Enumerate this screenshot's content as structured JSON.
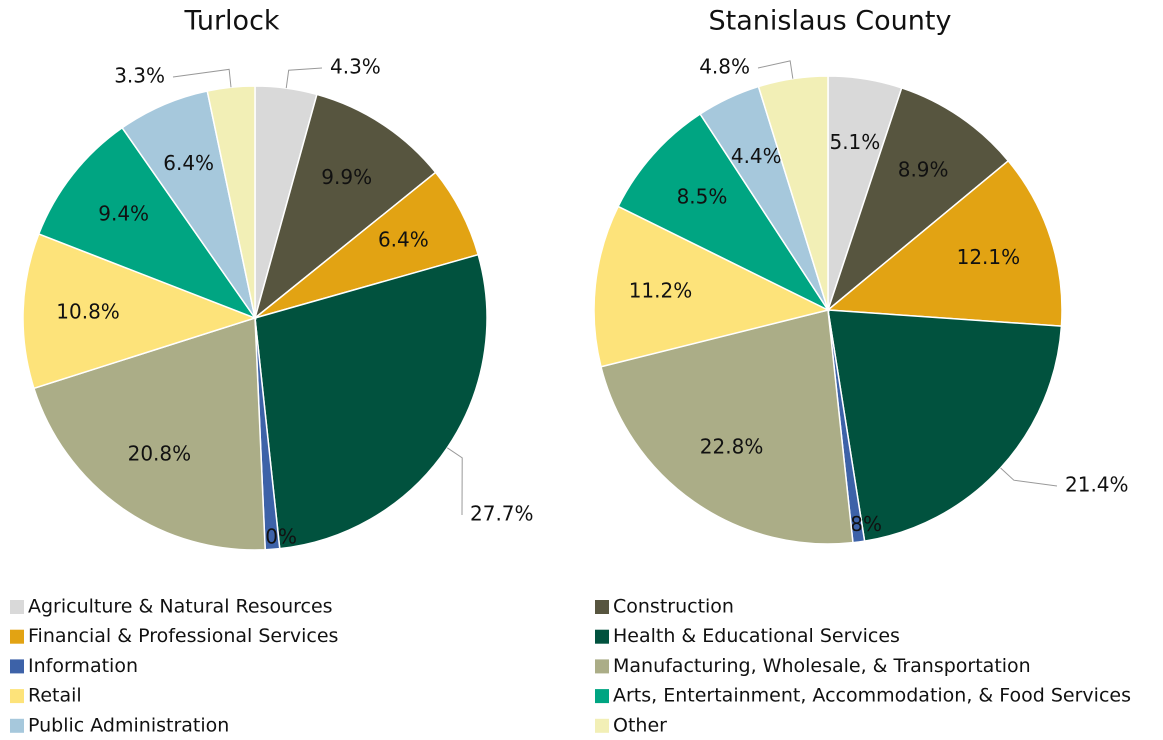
{
  "legend": {
    "categories": [
      "Agriculture & Natural Resources",
      "Construction",
      "Financial & Professional Services",
      "Health & Educational Services",
      "Information",
      "Manufacturing, Wholesale, & Transportation",
      "Retail",
      "Arts, Entertainment, Accommodation, & Food Services",
      "Public Administration",
      "Other"
    ],
    "colors": [
      "#d9d9d9",
      "#57553f",
      "#e2a313",
      "#01523e",
      "#3d62a8",
      "#abad87",
      "#fde37a",
      "#00a582",
      "#a6c8dc",
      "#f2efb6"
    ]
  },
  "chart_data": [
    {
      "type": "pie",
      "title": "Turlock",
      "values": [
        4.3,
        9.9,
        6.4,
        27.7,
        1.0,
        20.8,
        10.8,
        9.4,
        6.4,
        3.3
      ],
      "value_labels": [
        "4.3%",
        "9.9%",
        "6.4%",
        "27.7%",
        "1.0%",
        "20.8%",
        "10.8%",
        "9.4%",
        "6.4%",
        "3.3%"
      ]
    },
    {
      "type": "pie",
      "title": "Stanislaus County",
      "values": [
        5.1,
        8.9,
        12.1,
        21.4,
        0.8,
        22.8,
        11.2,
        8.5,
        4.4,
        4.8
      ],
      "value_labels": [
        "5.1%",
        "8.9%",
        "12.1%",
        "21.4%",
        "0.8%",
        "22.8%",
        "11.2%",
        "8.5%",
        "4.4%",
        "4.8%"
      ]
    }
  ]
}
